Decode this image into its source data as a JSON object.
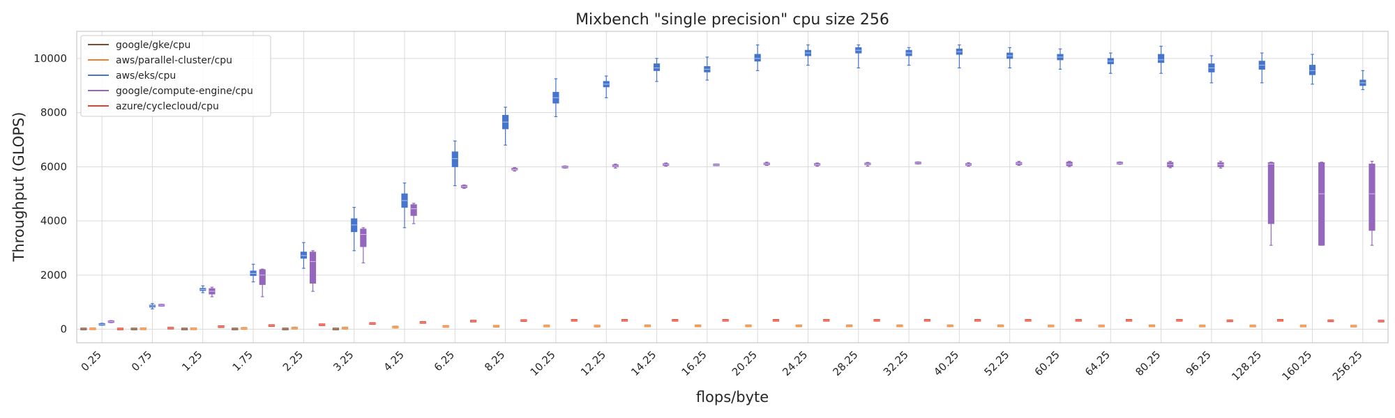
{
  "chart_data": {
    "type": "box",
    "title": "Mixbench \"single precision\" cpu size 256",
    "xlabel": "flops/byte",
    "ylabel": "Throughput (GLOPS)",
    "ylim": [
      -500,
      11000
    ],
    "yticks": [
      0,
      2000,
      4000,
      6000,
      8000,
      10000
    ],
    "grid": true,
    "legend_position": "top-left",
    "categories": [
      "0.25",
      "0.75",
      "1.25",
      "1.75",
      "2.25",
      "3.25",
      "4.25",
      "6.25",
      "8.25",
      "10.25",
      "12.25",
      "14.25",
      "16.25",
      "20.25",
      "24.25",
      "28.25",
      "32.25",
      "40.25",
      "52.25",
      "60.25",
      "64.25",
      "80.25",
      "96.25",
      "128.25",
      "160.25",
      "256.25"
    ],
    "series": [
      {
        "name": "google/gke/cpu",
        "color": "#7b4a2a",
        "values": [
          [
            0,
            5,
            10,
            15,
            20
          ],
          [
            0,
            5,
            10,
            15,
            20
          ],
          [
            0,
            5,
            10,
            15,
            20
          ],
          [
            0,
            5,
            10,
            15,
            20
          ],
          [
            0,
            5,
            10,
            15,
            20
          ],
          [
            0,
            5,
            10,
            15,
            20
          ],
          null,
          null,
          null,
          null,
          null,
          null,
          null,
          null,
          null,
          null,
          null,
          null,
          null,
          null,
          null,
          null,
          null,
          null,
          null,
          null
        ]
      },
      {
        "name": "aws/parallel-cluster/cpu",
        "color": "#f07f2a",
        "values": [
          [
            5,
            10,
            15,
            20,
            30
          ],
          [
            5,
            10,
            15,
            20,
            30
          ],
          [
            5,
            10,
            15,
            20,
            30
          ],
          [
            10,
            20,
            30,
            40,
            60
          ],
          [
            20,
            30,
            40,
            50,
            70
          ],
          [
            10,
            30,
            40,
            50,
            70
          ],
          [
            50,
            70,
            80,
            90,
            110
          ],
          [
            80,
            95,
            100,
            110,
            120
          ],
          [
            90,
            100,
            110,
            120,
            130
          ],
          [
            100,
            110,
            120,
            130,
            140
          ],
          [
            100,
            110,
            120,
            125,
            135
          ],
          [
            110,
            120,
            125,
            130,
            140
          ],
          [
            110,
            120,
            125,
            130,
            140
          ],
          [
            110,
            120,
            125,
            130,
            140
          ],
          [
            110,
            120,
            125,
            130,
            140
          ],
          [
            110,
            120,
            125,
            130,
            140
          ],
          [
            110,
            120,
            125,
            130,
            140
          ],
          [
            110,
            120,
            125,
            130,
            140
          ],
          [
            110,
            120,
            125,
            130,
            140
          ],
          [
            100,
            110,
            120,
            130,
            140
          ],
          [
            100,
            110,
            120,
            130,
            140
          ],
          [
            110,
            120,
            125,
            130,
            140
          ],
          [
            100,
            110,
            120,
            130,
            140
          ],
          [
            100,
            110,
            120,
            130,
            140
          ],
          [
            100,
            110,
            120,
            130,
            140
          ],
          [
            100,
            110,
            115,
            120,
            130
          ]
        ]
      },
      {
        "name": "aws/eks/cpu",
        "color": "#4575cd",
        "values": [
          [
            150,
            160,
            180,
            200,
            220
          ],
          [
            750,
            820,
            860,
            890,
            950
          ],
          [
            1350,
            1430,
            1470,
            1510,
            1600
          ],
          [
            1750,
            1980,
            2060,
            2150,
            2400
          ],
          [
            2250,
            2620,
            2720,
            2850,
            3200
          ],
          [
            2900,
            3600,
            3850,
            4080,
            4500
          ],
          [
            3750,
            4500,
            4750,
            5000,
            5400
          ],
          [
            5300,
            6000,
            6300,
            6550,
            6950
          ],
          [
            6800,
            7400,
            7650,
            7900,
            8200
          ],
          [
            7850,
            8350,
            8550,
            8750,
            9250
          ],
          [
            8550,
            8950,
            9050,
            9150,
            9350
          ],
          [
            9150,
            9550,
            9650,
            9800,
            10000
          ],
          [
            9200,
            9500,
            9600,
            9700,
            10050
          ],
          [
            9550,
            9900,
            10000,
            10150,
            10500
          ],
          [
            9750,
            10100,
            10200,
            10300,
            10500
          ],
          [
            9650,
            10200,
            10300,
            10400,
            10500
          ],
          [
            9750,
            10100,
            10200,
            10300,
            10400
          ],
          [
            9650,
            10150,
            10250,
            10350,
            10500
          ],
          [
            9650,
            10000,
            10100,
            10200,
            10400
          ],
          [
            9600,
            9950,
            10050,
            10150,
            10350
          ],
          [
            9450,
            9800,
            9900,
            10000,
            10200
          ],
          [
            9450,
            9850,
            9950,
            10150,
            10450
          ],
          [
            9100,
            9500,
            9650,
            9800,
            10100
          ],
          [
            9100,
            9600,
            9750,
            9900,
            10200
          ],
          [
            9050,
            9400,
            9550,
            9750,
            10150
          ],
          [
            8850,
            9000,
            9100,
            9200,
            9550
          ]
        ]
      },
      {
        "name": "google/compute-engine/cpu",
        "color": "#9467bd",
        "values": [
          [
            240,
            260,
            280,
            300,
            320
          ],
          [
            850,
            870,
            885,
            900,
            920
          ],
          [
            1200,
            1300,
            1400,
            1500,
            1550
          ],
          [
            1200,
            1650,
            2000,
            2200,
            2220
          ],
          [
            1400,
            1700,
            2500,
            2850,
            2900
          ],
          [
            2450,
            3050,
            3500,
            3700,
            3750
          ],
          [
            3900,
            4200,
            4450,
            4600,
            4650
          ],
          [
            5200,
            5230,
            5270,
            5310,
            5330
          ],
          [
            5840,
            5880,
            5900,
            5940,
            5970
          ],
          [
            5950,
            5970,
            5990,
            6010,
            6030
          ],
          [
            5950,
            6000,
            6030,
            6070,
            6100
          ],
          [
            6020,
            6050,
            6080,
            6110,
            6140
          ],
          [
            6050,
            6060,
            6070,
            6080,
            6100
          ],
          [
            6050,
            6080,
            6100,
            6130,
            6170
          ],
          [
            6020,
            6060,
            6080,
            6110,
            6140
          ],
          [
            6020,
            6080,
            6100,
            6130,
            6160
          ],
          [
            6100,
            6120,
            6140,
            6160,
            6180
          ],
          [
            6020,
            6060,
            6080,
            6110,
            6150
          ],
          [
            6050,
            6080,
            6120,
            6160,
            6200
          ],
          [
            6000,
            6040,
            6100,
            6170,
            6200
          ],
          [
            6090,
            6110,
            6130,
            6160,
            6180
          ],
          [
            5960,
            6000,
            6080,
            6160,
            6200
          ],
          [
            5950,
            6000,
            6080,
            6150,
            6200
          ],
          [
            3100,
            3900,
            6100,
            6150,
            6170
          ],
          [
            3100,
            3100,
            5000,
            6150,
            6170
          ],
          [
            3100,
            3650,
            5000,
            6100,
            6200
          ]
        ]
      },
      {
        "name": "azure/cyclecloud/cpu",
        "color": "#e8402c",
        "values": [
          [
            0,
            5,
            10,
            15,
            20
          ],
          [
            20,
            30,
            40,
            50,
            60
          ],
          [
            80,
            90,
            95,
            100,
            110
          ],
          [
            120,
            130,
            135,
            140,
            150
          ],
          [
            150,
            160,
            165,
            170,
            180
          ],
          [
            190,
            200,
            210,
            220,
            230
          ],
          [
            230,
            240,
            250,
            260,
            270
          ],
          [
            280,
            290,
            300,
            310,
            320
          ],
          [
            300,
            310,
            320,
            330,
            340
          ],
          [
            310,
            320,
            330,
            340,
            350
          ],
          [
            310,
            320,
            330,
            340,
            350
          ],
          [
            310,
            320,
            330,
            340,
            350
          ],
          [
            310,
            320,
            330,
            340,
            350
          ],
          [
            310,
            320,
            330,
            340,
            350
          ],
          [
            310,
            320,
            330,
            340,
            350
          ],
          [
            310,
            320,
            330,
            340,
            350
          ],
          [
            310,
            320,
            330,
            340,
            350
          ],
          [
            310,
            320,
            330,
            340,
            350
          ],
          [
            310,
            320,
            330,
            340,
            350
          ],
          [
            310,
            320,
            330,
            340,
            350
          ],
          [
            310,
            320,
            330,
            340,
            350
          ],
          [
            310,
            320,
            330,
            340,
            350
          ],
          [
            300,
            305,
            310,
            315,
            320
          ],
          [
            310,
            320,
            330,
            340,
            350
          ],
          [
            300,
            305,
            310,
            315,
            320
          ],
          [
            290,
            295,
            300,
            305,
            310
          ]
        ]
      }
    ]
  }
}
